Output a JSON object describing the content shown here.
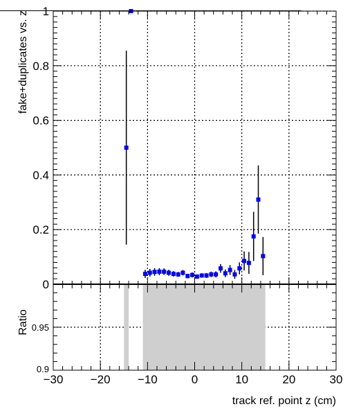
{
  "chart_data": [
    {
      "type": "scatter",
      "panel": "main",
      "ylabel": "fake+duplicates vs. z",
      "xlim": [
        -30,
        30
      ],
      "ylim": [
        0,
        1.0
      ],
      "x_ticks": [
        -30,
        -20,
        -10,
        0,
        10,
        20,
        30
      ],
      "y_ticks": [
        0,
        0.2,
        0.4,
        0.6,
        0.8,
        1
      ],
      "y_tick_labels": [
        "0",
        "0.2",
        "0.4",
        "0.6",
        "0.8",
        "1"
      ],
      "grid": true,
      "marker_color": "#0000ff",
      "series": [
        {
          "points": [
            {
              "x": -14.5,
              "y": 0.5,
              "err": 0.355
            },
            {
              "x": -13.5,
              "y": 1.0,
              "err": 0.0
            },
            {
              "x": -10.5,
              "y": 0.038,
              "err": 0.015
            },
            {
              "x": -9.5,
              "y": 0.042,
              "err": 0.014
            },
            {
              "x": -8.5,
              "y": 0.045,
              "err": 0.014
            },
            {
              "x": -7.5,
              "y": 0.046,
              "err": 0.013
            },
            {
              "x": -6.5,
              "y": 0.046,
              "err": 0.012
            },
            {
              "x": -5.5,
              "y": 0.042,
              "err": 0.011
            },
            {
              "x": -4.5,
              "y": 0.038,
              "err": 0.01
            },
            {
              "x": -3.5,
              "y": 0.036,
              "err": 0.009
            },
            {
              "x": -2.5,
              "y": 0.042,
              "err": 0.01
            },
            {
              "x": -1.5,
              "y": 0.03,
              "err": 0.008
            },
            {
              "x": -0.5,
              "y": 0.034,
              "err": 0.009
            },
            {
              "x": 0.5,
              "y": 0.028,
              "err": 0.008
            },
            {
              "x": 1.5,
              "y": 0.032,
              "err": 0.008
            },
            {
              "x": 2.5,
              "y": 0.032,
              "err": 0.009
            },
            {
              "x": 3.5,
              "y": 0.036,
              "err": 0.01
            },
            {
              "x": 4.5,
              "y": 0.036,
              "err": 0.011
            },
            {
              "x": 5.5,
              "y": 0.058,
              "err": 0.016
            },
            {
              "x": 6.5,
              "y": 0.04,
              "err": 0.014
            },
            {
              "x": 7.5,
              "y": 0.052,
              "err": 0.018
            },
            {
              "x": 8.5,
              "y": 0.036,
              "err": 0.016
            },
            {
              "x": 9.5,
              "y": 0.058,
              "err": 0.022
            },
            {
              "x": 10.5,
              "y": 0.085,
              "err": 0.035
            },
            {
              "x": 11.5,
              "y": 0.078,
              "err": 0.04
            },
            {
              "x": 12.5,
              "y": 0.175,
              "err": 0.09
            },
            {
              "x": 13.5,
              "y": 0.31,
              "err": 0.125
            },
            {
              "x": 14.5,
              "y": 0.103,
              "err": 0.07
            }
          ]
        }
      ]
    },
    {
      "type": "area",
      "panel": "ratio",
      "ylabel": "Ratio",
      "xlabel": "track ref. point z (cm)",
      "xlim": [
        -30,
        30
      ],
      "ylim": [
        0.9,
        1.0
      ],
      "x_ticks": [
        -30,
        -20,
        -10,
        0,
        10,
        20,
        30
      ],
      "x_tick_labels": [
        "−30",
        "−20",
        "−10",
        "0",
        "10",
        "20",
        "30"
      ],
      "y_ticks": [
        0.9,
        0.95
      ],
      "y_tick_labels": [
        "0.9",
        "0.95"
      ],
      "grid": true,
      "fill_color": "#cfcfcf",
      "bands": [
        {
          "x0": -15,
          "x1": -14,
          "value": 1.0
        },
        {
          "x0": -11,
          "x1": 15,
          "value": 1.0
        }
      ]
    }
  ]
}
